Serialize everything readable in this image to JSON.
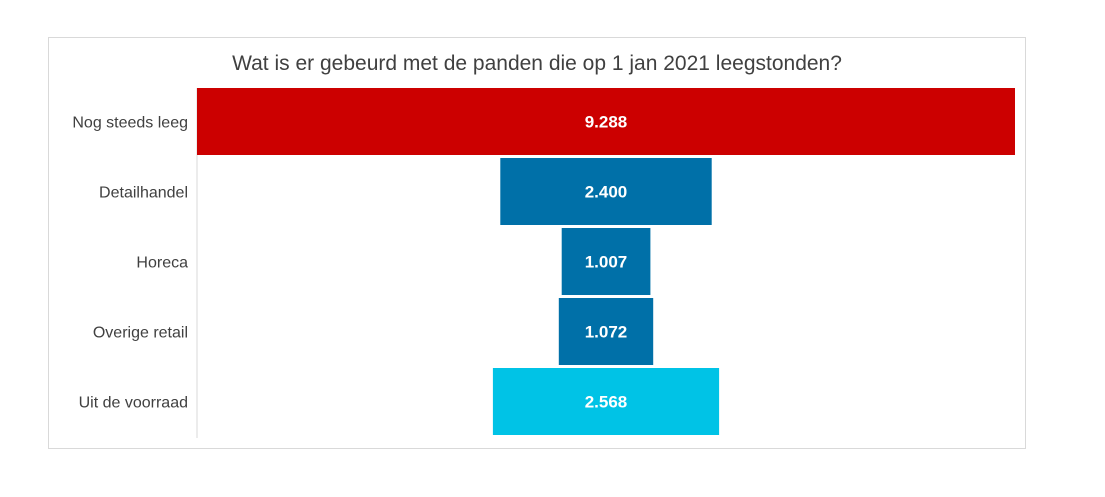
{
  "chart_data": {
    "type": "bar",
    "subtype": "funnel",
    "title": "Wat is er gebeurd met de panden die op 1 jan 2021 leegstonden?",
    "orientation": "horizontal",
    "categories": [
      "Nog steeds leeg",
      "Detailhandel",
      "Horeca",
      "Overige retail",
      "Uit de voorraad"
    ],
    "values": [
      9288,
      2400,
      1007,
      1072,
      2568
    ],
    "value_labels": [
      "9.288",
      "2.400",
      "1.007",
      "1.072",
      "2.568"
    ],
    "colors": [
      "#cc0000",
      "#0070a8",
      "#0070a8",
      "#0070a8",
      "#00c3e6"
    ],
    "xlim": [
      0,
      9288
    ],
    "grid": false,
    "legend": "none"
  }
}
